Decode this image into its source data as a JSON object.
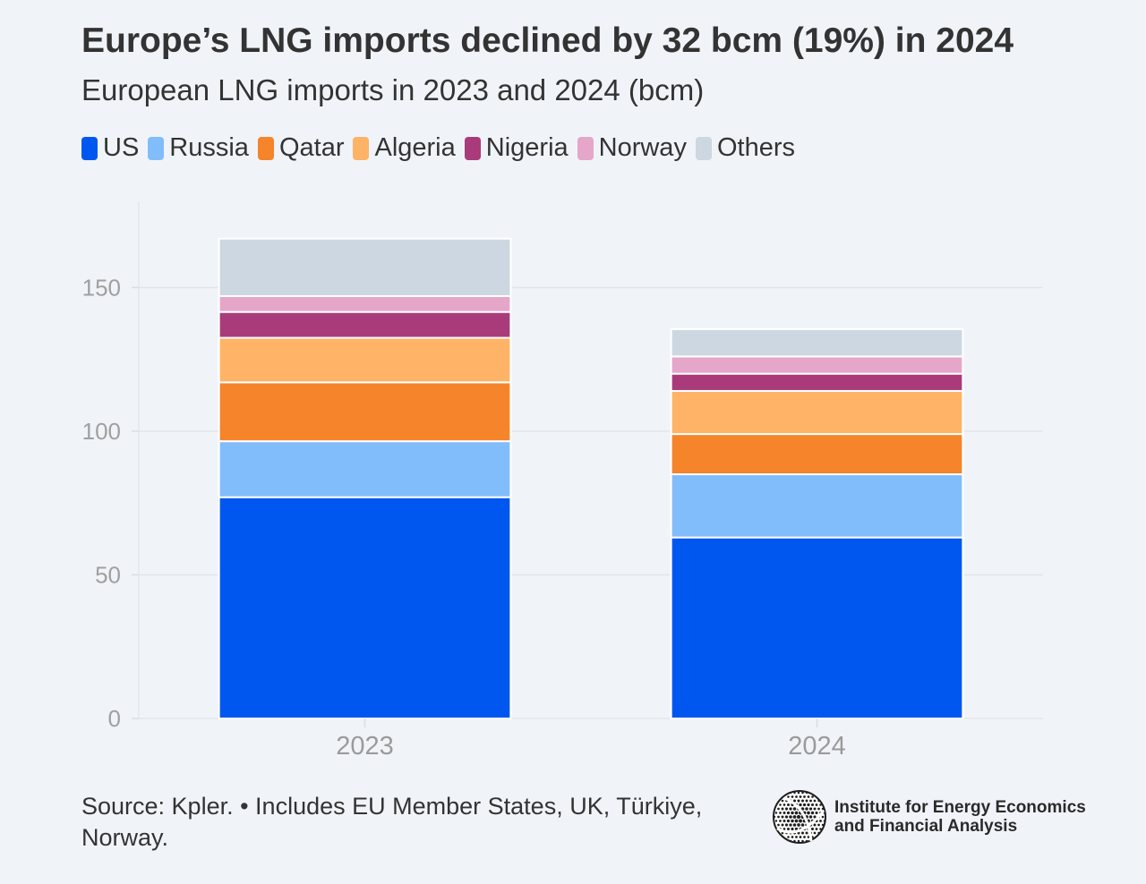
{
  "title": "Europe’s LNG imports declined by 32 bcm (19%) in 2024",
  "subtitle": "European LNG imports in 2023 and 2024 (bcm)",
  "source": "Source: Kpler. • Includes EU Member States, UK, Türkiye, Norway.",
  "logo": {
    "line1": "Institute for Energy Economics",
    "line2": "and Financial Analysis",
    "icon": "globe-icon"
  },
  "legend": [
    {
      "label": "US",
      "color": "#0057f0"
    },
    {
      "label": "Russia",
      "color": "#82bdfb"
    },
    {
      "label": "Qatar",
      "color": "#f5842a"
    },
    {
      "label": "Algeria",
      "color": "#ffb366"
    },
    {
      "label": "Nigeria",
      "color": "#a93b7b"
    },
    {
      "label": "Norway",
      "color": "#e5a6c9"
    },
    {
      "label": "Others",
      "color": "#ccd7e1"
    }
  ],
  "chart_data": {
    "type": "bar",
    "stacked": true,
    "categories": [
      "2023",
      "2024"
    ],
    "series": [
      {
        "name": "US",
        "color": "#0057f0",
        "values": [
          77,
          63
        ]
      },
      {
        "name": "Russia",
        "color": "#82bdfb",
        "values": [
          19.5,
          22
        ]
      },
      {
        "name": "Qatar",
        "color": "#f5842a",
        "values": [
          20.5,
          14
        ]
      },
      {
        "name": "Algeria",
        "color": "#ffb366",
        "values": [
          15.5,
          15
        ]
      },
      {
        "name": "Nigeria",
        "color": "#a93b7b",
        "values": [
          9,
          6
        ]
      },
      {
        "name": "Norway",
        "color": "#e5a6c9",
        "values": [
          5.5,
          6
        ]
      },
      {
        "name": "Others",
        "color": "#ccd7e1",
        "values": [
          20,
          9.5
        ]
      }
    ],
    "yticks": [
      0,
      50,
      100,
      150
    ],
    "ylim": [
      0,
      180
    ],
    "xlabel": "",
    "ylabel": "",
    "grid": true,
    "legend_position": "top-left"
  }
}
